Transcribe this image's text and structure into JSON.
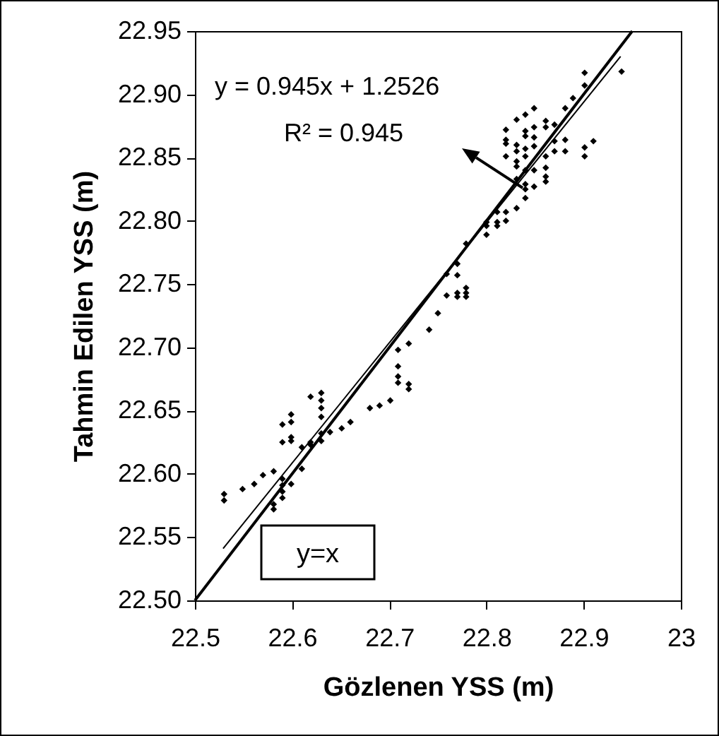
{
  "chart_data": {
    "type": "scatter",
    "xlabel": "Gözlenen YSS (m)",
    "ylabel": "Tahmin Edilen YSS (m)",
    "xlim": [
      22.5,
      23
    ],
    "xticks": [
      22.5,
      22.6,
      22.7,
      22.8,
      22.9,
      23
    ],
    "ylim": [
      22.5,
      22.95
    ],
    "yticks": [
      {
        "value": 22.5,
        "label": "22.50"
      },
      22.55,
      {
        "value": 22.6,
        "label": "22.60"
      },
      22.65,
      {
        "value": 22.7,
        "label": "22.70"
      },
      22.75,
      {
        "value": 22.8,
        "label": "22.80"
      },
      22.85,
      {
        "value": 22.9,
        "label": "22.90"
      },
      22.95
    ],
    "grid": false,
    "annotations": [
      "y = 0.945x + 1.2526",
      "R² = 0.945"
    ],
    "series": [
      {
        "marker": "diamond",
        "color": "#000000",
        "x": [
          22.53,
          22.53,
          22.549,
          22.561,
          22.57,
          22.581,
          22.581,
          22.581,
          22.59,
          22.59,
          22.59,
          22.59,
          22.59,
          22.59,
          22.599,
          22.599,
          22.599,
          22.599,
          22.599,
          22.61,
          22.61,
          22.619,
          22.619,
          22.619,
          22.63,
          22.63,
          22.63,
          22.63,
          22.63,
          22.63,
          22.639,
          22.651,
          22.66,
          22.68,
          22.69,
          22.701,
          22.709,
          22.709,
          22.709,
          22.709,
          22.72,
          22.72,
          22.72,
          22.741,
          22.75,
          22.759,
          22.759,
          22.77,
          22.77,
          22.77,
          22.77,
          22.779,
          22.779,
          22.779,
          22.779,
          22.8,
          22.8,
          22.8,
          22.811,
          22.811,
          22.811,
          22.82,
          22.82,
          22.831,
          22.82,
          22.82,
          22.82,
          22.82,
          22.831,
          22.831,
          22.831,
          22.831,
          22.831,
          22.831,
          22.84,
          22.84,
          22.84,
          22.84,
          22.84,
          22.84,
          22.84,
          22.84,
          22.84,
          22.849,
          22.849,
          22.849,
          22.849,
          22.849,
          22.849,
          22.861,
          22.861,
          22.861,
          22.861,
          22.861,
          22.861,
          22.87,
          22.87,
          22.87,
          22.881,
          22.881,
          22.881,
          22.889,
          22.901,
          22.901,
          22.901,
          22.901,
          22.91,
          22.939
        ],
        "values": [
          22.584,
          22.579,
          22.588,
          22.592,
          22.599,
          22.602,
          22.576,
          22.572,
          22.639,
          22.625,
          22.596,
          22.591,
          22.586,
          22.581,
          22.647,
          22.641,
          22.629,
          22.626,
          22.592,
          22.621,
          22.604,
          22.661,
          22.625,
          22.623,
          22.664,
          22.658,
          22.652,
          22.645,
          22.632,
          22.626,
          22.633,
          22.636,
          22.641,
          22.652,
          22.654,
          22.658,
          22.698,
          22.685,
          22.677,
          22.672,
          22.703,
          22.671,
          22.667,
          22.714,
          22.727,
          22.758,
          22.741,
          22.766,
          22.757,
          22.743,
          22.74,
          22.782,
          22.747,
          22.743,
          22.74,
          22.799,
          22.796,
          22.789,
          22.807,
          22.799,
          22.796,
          22.807,
          22.8,
          22.81,
          22.872,
          22.864,
          22.861,
          22.851,
          22.88,
          22.86,
          22.855,
          22.847,
          22.843,
          22.833,
          22.884,
          22.871,
          22.867,
          22.857,
          22.851,
          22.84,
          22.829,
          22.825,
          22.818,
          22.889,
          22.874,
          22.866,
          22.859,
          22.84,
          22.827,
          22.879,
          22.874,
          22.851,
          22.842,
          22.835,
          22.831,
          22.876,
          22.863,
          22.855,
          22.889,
          22.864,
          22.855,
          22.897,
          22.917,
          22.907,
          22.858,
          22.851,
          22.863,
          22.918
        ]
      },
      {
        "type": "line",
        "color": "#000000",
        "x": [
          22.529,
          22.938
        ],
        "values": [
          22.541,
          22.93
        ]
      },
      {
        "type": "line",
        "name": "y=x",
        "color": "#000000",
        "x": [
          22.5,
          22.95
        ],
        "values": [
          22.5,
          22.95
        ]
      }
    ]
  }
}
